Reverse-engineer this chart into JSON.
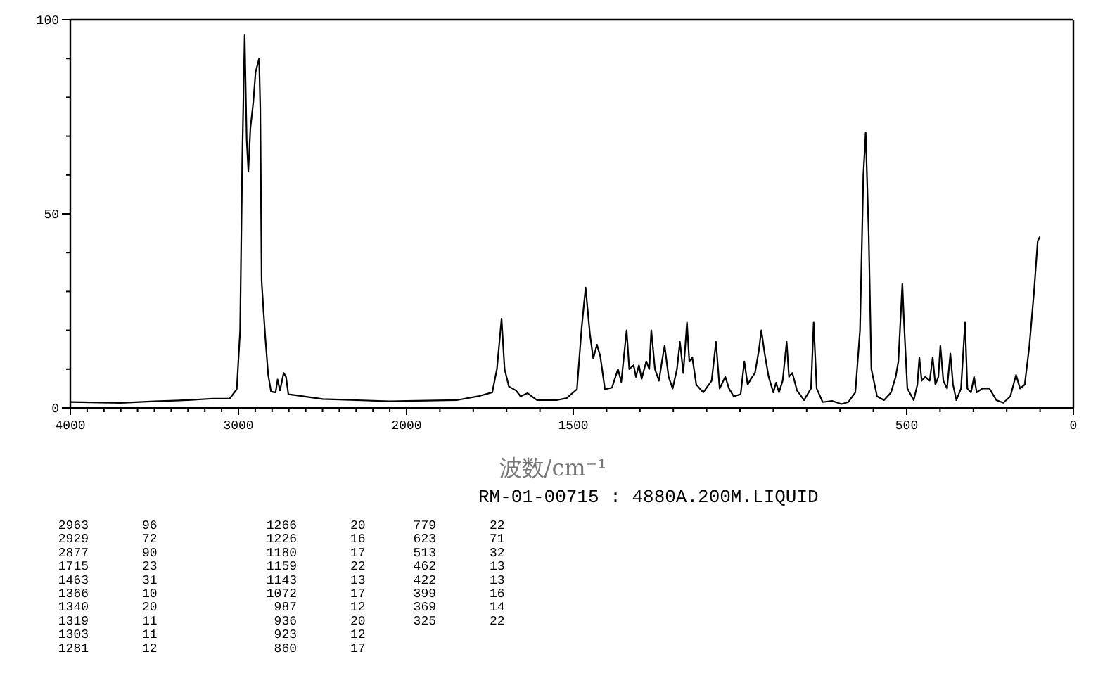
{
  "chart_data": [
    {
      "type": "line",
      "xlim": [
        4000,
        2000
      ],
      "ylim": [
        0,
        100
      ],
      "xticks": [
        4000,
        {
          "value": 3900,
          "label": null
        },
        {
          "value": 3800,
          "label": null
        },
        {
          "value": 3700,
          "label": null
        },
        {
          "value": 3600,
          "label": null
        },
        {
          "value": 3500,
          "label": null
        },
        {
          "value": 3400,
          "label": null
        },
        {
          "value": 3300,
          "label": null
        },
        {
          "value": 3200,
          "label": null
        },
        {
          "value": 3100,
          "label": null
        },
        3000,
        {
          "value": 2900,
          "label": null
        },
        {
          "value": 2800,
          "label": null
        },
        {
          "value": 2700,
          "label": null
        },
        {
          "value": 2600,
          "label": null
        },
        {
          "value": 2500,
          "label": null
        },
        {
          "value": 2400,
          "label": null
        },
        {
          "value": 2300,
          "label": null
        },
        {
          "value": 2200,
          "label": null
        },
        {
          "value": 2100,
          "label": null
        },
        2000
      ],
      "yticks": [
        0,
        {
          "value": 10,
          "label": null
        },
        {
          "value": 20,
          "label": null
        },
        {
          "value": 30,
          "label": null
        },
        {
          "value": 40,
          "label": null
        },
        50,
        {
          "value": 60,
          "label": null
        },
        {
          "value": 70,
          "label": null
        },
        {
          "value": 80,
          "label": null
        },
        {
          "value": 90,
          "label": null
        },
        100
      ],
      "series": [
        {
          "color": "#000000",
          "x": [
            4000,
            3700,
            3500,
            3300,
            3150,
            3052,
            3010,
            2990,
            2977,
            2963,
            2951,
            2941,
            2929,
            2912,
            2898,
            2877,
            2870,
            2862,
            2851,
            2840,
            2823,
            2806,
            2779,
            2767,
            2753,
            2731,
            2717,
            2703,
            2647,
            2500,
            2300,
            2100,
            2000
          ],
          "values": [
            1.5,
            1.3,
            1.7,
            2.0,
            2.4,
            2.4,
            4.8,
            20,
            65,
            96,
            69,
            61,
            72,
            78.6,
            86.5,
            90,
            77,
            32.6,
            25,
            18,
            8.5,
            4.2,
            4,
            7.3,
            4.5,
            9,
            8,
            3.5,
            3.2,
            2.3,
            2.0,
            1.7,
            1.8
          ]
        }
      ],
      "annotations": [
        "2963 96",
        "2929 72",
        "2877 90",
        "1715 23",
        "1463 31",
        "1366 10",
        "1340 20",
        "1319 11",
        "1303 11",
        "1281 12",
        "1266 20",
        "1226 16",
        "1180 17",
        "1159 22",
        "1143 13",
        "1072 17",
        "987 12",
        "936 20",
        "923 12",
        "860 17",
        "779 22",
        "623 71",
        "513 32",
        "462 13",
        "422 13",
        "399 16",
        "369 14",
        "325 22"
      ]
    },
    {
      "type": "line",
      "xlim": [
        2000,
        0
      ],
      "ylim": [
        0,
        100
      ],
      "tick_labels": "x",
      "xlabel": "波数/cm⁻¹",
      "subtitle": "RM-01-00715 : 4880A.200M.LIQUID",
      "xticks": [
        {
          "value": 1900,
          "label": null
        },
        {
          "value": 1800,
          "label": null
        },
        {
          "value": 1700,
          "label": null
        },
        {
          "value": 1600,
          "label": null
        },
        1500,
        {
          "value": 1400,
          "label": null
        },
        {
          "value": 1300,
          "label": null
        },
        {
          "value": 1200,
          "label": null
        },
        {
          "value": 1100,
          "label": null
        },
        {
          "value": 1000,
          "label": null
        },
        {
          "value": 900,
          "label": null
        },
        {
          "value": 800,
          "label": null
        },
        {
          "value": 700,
          "label": null
        },
        {
          "value": 600,
          "label": null
        },
        500,
        {
          "value": 400,
          "label": null
        },
        {
          "value": 300,
          "label": null
        },
        {
          "value": 200,
          "label": null
        },
        {
          "value": 100,
          "label": null
        },
        0
      ],
      "series": [
        {
          "color": "#000000",
          "x": [
            2000,
            1850,
            1785,
            1743,
            1729,
            1715,
            1706,
            1693,
            1672,
            1658,
            1637,
            1609,
            1550,
            1520,
            1489,
            1475,
            1463,
            1450,
            1440,
            1429,
            1419,
            1405,
            1384,
            1366,
            1356,
            1340,
            1332,
            1319,
            1312,
            1303,
            1295,
            1281,
            1272,
            1266,
            1255,
            1243,
            1234,
            1226,
            1214,
            1202,
            1189,
            1180,
            1170,
            1159,
            1152,
            1143,
            1131,
            1110,
            1085,
            1072,
            1061,
            1044,
            1033,
            1019,
            998,
            987,
            977,
            967,
            955,
            943,
            936,
            926,
            914,
            900,
            892,
            883,
            872,
            860,
            853,
            843,
            829,
            808,
            787,
            779,
            770,
            752,
            724,
            696,
            675,
            654,
            640,
            630,
            623,
            614,
            606,
            589,
            568,
            547,
            533,
            525,
            513,
            508,
            498,
            479,
            468,
            462,
            455,
            444,
            431,
            422,
            414,
            405,
            399,
            390,
            379,
            369,
            361,
            351,
            337,
            325,
            318,
            307,
            298,
            290,
            273,
            252,
            231,
            210,
            189,
            172,
            160,
            146,
            132,
            118,
            107,
            101
          ],
          "values": [
            1.8,
            2.0,
            3,
            4,
            10,
            23,
            10,
            5.5,
            4.5,
            3,
            3.8,
            2,
            2,
            2.5,
            4.8,
            20.5,
            31,
            19,
            12.7,
            16.3,
            13.3,
            4.8,
            5.2,
            10,
            6.7,
            20,
            10,
            11,
            8,
            11,
            7.5,
            12,
            10,
            20,
            10,
            7,
            12,
            16,
            8,
            5,
            10,
            17,
            9,
            22,
            12,
            13,
            6,
            4,
            7,
            17,
            5,
            8,
            5,
            3,
            3.5,
            12,
            6,
            7.5,
            9,
            15,
            20,
            14,
            8,
            4,
            6.5,
            4,
            7,
            17,
            8,
            9,
            4.5,
            2,
            5,
            22,
            5,
            1.5,
            1.8,
            1,
            1.5,
            4,
            20,
            60,
            71,
            45,
            10,
            3,
            2,
            4,
            8,
            12,
            32,
            22,
            5,
            2,
            6,
            13,
            7,
            8,
            7,
            13,
            6,
            8,
            16,
            7,
            5,
            14,
            6,
            2,
            5,
            22,
            5,
            4,
            8,
            4,
            5,
            5,
            2,
            1.3,
            3,
            8.5,
            5,
            6,
            16,
            30,
            43,
            44
          ]
        }
      ]
    }
  ]
}
